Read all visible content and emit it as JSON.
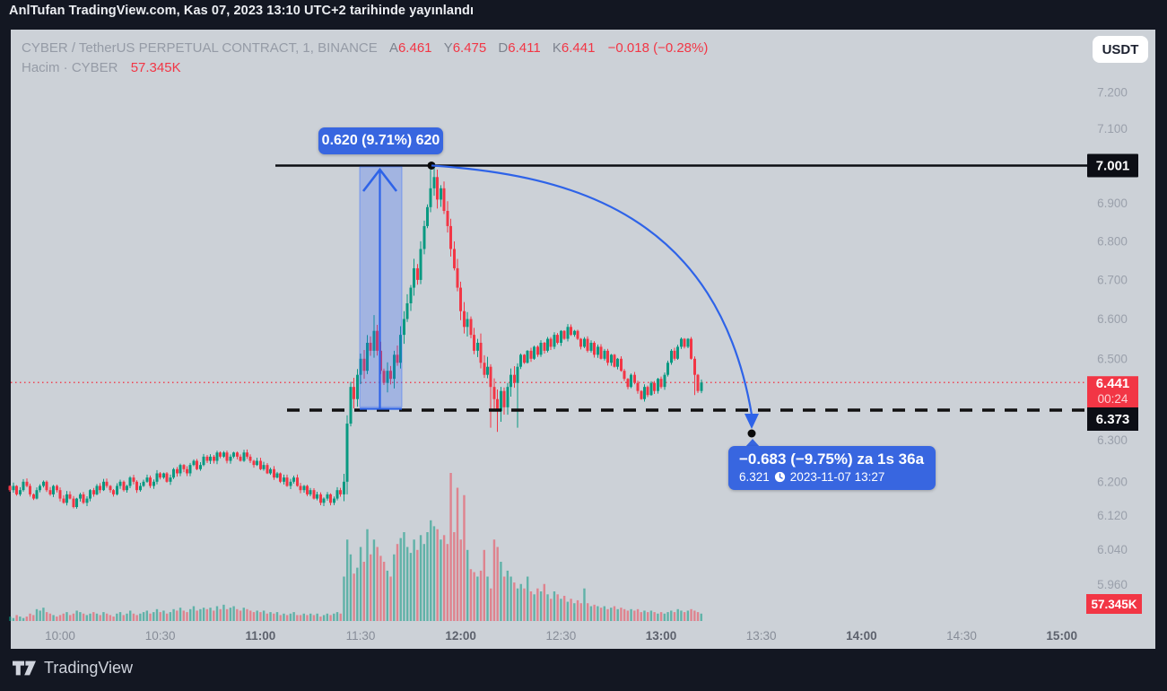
{
  "banner": {
    "text": "AnlTufan TradingView.com, Kas 07, 2023 13:10 UTC+2 tarihinde yayınlandı"
  },
  "header": {
    "symbol": "CYBER / TetherUS PERPETUAL CONTRACT, 1, BINANCE",
    "ohlc": [
      {
        "key": "A",
        "value": "6.461"
      },
      {
        "key": "Y",
        "value": "6.475"
      },
      {
        "key": "D",
        "value": "6.411"
      },
      {
        "key": "K",
        "value": "6.441"
      }
    ],
    "change": "−0.018 (−0.28%)",
    "volume_label": "Hacim · CYBER",
    "volume_value": "57.345K",
    "currency_button": "USDT"
  },
  "footer": {
    "brand": "TradingView"
  },
  "annotations": {
    "measure_up_label": "0.620 (9.71%) 620",
    "drop_label_line1": "−0.683 (−9.75%) za 1s 36a",
    "drop_label_price": "6.321",
    "drop_label_datetime": "2023-11-07  13:27",
    "high_price_label": "7.001",
    "last_price_label": "6.441",
    "countdown": "00:24",
    "dashed_price_label": "6.373",
    "volume_axis_label": "57.345K"
  },
  "colors": {
    "frame": "#131722",
    "panel_bg": "#ccd1d7",
    "up": "#089981",
    "down": "#f23645",
    "up_volume": "rgba(8,153,129,0.55)",
    "down_volume": "rgba(242,54,69,0.5)",
    "accent_blue": "#2e63e8",
    "band_fill": "rgba(41,98,255,0.26)",
    "axis_text": "#9aa0ab",
    "axis_text_bold": "#5d626d",
    "black_line": "#0b0d12",
    "red_label_bg": "#f23645",
    "black_label_bg": "#0c0e15"
  },
  "chart_data": {
    "type": "candlestick+volume",
    "interval_minutes": 1,
    "start_time": "09:45",
    "price_scale": "log",
    "y_axis_ticks": [
      {
        "label": "7.200",
        "value": 7.2
      },
      {
        "label": "7.100",
        "value": 7.1
      },
      {
        "label": "6.900",
        "value": 6.9
      },
      {
        "label": "6.800",
        "value": 6.8
      },
      {
        "label": "6.700",
        "value": 6.7
      },
      {
        "label": "6.600",
        "value": 6.6
      },
      {
        "label": "6.500",
        "value": 6.5
      },
      {
        "label": "6.300",
        "value": 6.3
      },
      {
        "label": "6.200",
        "value": 6.2
      },
      {
        "label": "6.120",
        "value": 6.12
      },
      {
        "label": "6.040",
        "value": 6.04
      },
      {
        "label": "5.960",
        "value": 5.96
      }
    ],
    "x_axis_ticks": [
      {
        "label": "10:00",
        "bold": false
      },
      {
        "label": "10:30",
        "bold": false
      },
      {
        "label": "11:00",
        "bold": true
      },
      {
        "label": "11:30",
        "bold": false
      },
      {
        "label": "12:00",
        "bold": true
      },
      {
        "label": "12:30",
        "bold": false
      },
      {
        "label": "13:00",
        "bold": true
      },
      {
        "label": "13:30",
        "bold": false
      },
      {
        "label": "14:00",
        "bold": true
      },
      {
        "label": "14:30",
        "bold": false
      },
      {
        "label": "15:00",
        "bold": true
      }
    ],
    "high_line_price": 7.001,
    "dashed_line_price": 6.373,
    "last_price": 6.441,
    "last_close_red": true,
    "measure_up": {
      "from_price": 6.381,
      "to_price": 7.001,
      "change": 0.62,
      "pct": 9.71,
      "ticks": 620
    },
    "measure_down": {
      "from_price": 7.004,
      "to_price": 6.321,
      "change": -0.683,
      "pct": -9.75,
      "duration": "1s 36a",
      "target_time": "2023-11-07 13:27"
    },
    "closes": [
      6.18,
      6.19,
      6.17,
      6.18,
      6.2,
      6.19,
      6.17,
      6.16,
      6.18,
      6.19,
      6.2,
      6.18,
      6.17,
      6.19,
      6.18,
      6.16,
      6.15,
      6.17,
      6.16,
      6.14,
      6.16,
      6.17,
      6.15,
      6.16,
      6.18,
      6.17,
      6.19,
      6.18,
      6.2,
      6.19,
      6.18,
      6.17,
      6.19,
      6.2,
      6.18,
      6.19,
      6.21,
      6.2,
      6.18,
      6.19,
      6.2,
      6.21,
      6.19,
      6.2,
      6.22,
      6.21,
      6.22,
      6.2,
      6.21,
      6.23,
      6.22,
      6.24,
      6.23,
      6.22,
      6.24,
      6.25,
      6.23,
      6.24,
      6.26,
      6.25,
      6.26,
      6.25,
      6.27,
      6.26,
      6.27,
      6.25,
      6.26,
      6.27,
      6.26,
      6.25,
      6.27,
      6.26,
      6.25,
      6.24,
      6.25,
      6.23,
      6.24,
      6.22,
      6.23,
      6.21,
      6.22,
      6.2,
      6.21,
      6.19,
      6.2,
      6.21,
      6.19,
      6.18,
      6.19,
      6.17,
      6.18,
      6.16,
      6.17,
      6.15,
      6.16,
      6.17,
      6.15,
      6.16,
      6.18,
      6.17,
      6.2,
      6.34,
      6.43,
      6.4,
      6.46,
      6.5,
      6.47,
      6.54,
      6.52,
      6.57,
      6.52,
      6.47,
      6.44,
      6.47,
      6.45,
      6.51,
      6.49,
      6.56,
      6.6,
      6.64,
      6.68,
      6.73,
      6.7,
      6.78,
      6.84,
      6.89,
      6.94,
      6.97,
      6.91,
      6.94,
      6.88,
      6.84,
      6.78,
      6.73,
      6.68,
      6.62,
      6.58,
      6.6,
      6.56,
      6.52,
      6.54,
      6.49,
      6.46,
      6.48,
      6.43,
      6.4,
      6.37,
      6.42,
      6.38,
      6.43,
      6.46,
      6.44,
      6.48,
      6.51,
      6.49,
      6.52,
      6.5,
      6.53,
      6.51,
      6.54,
      6.52,
      6.55,
      6.53,
      6.56,
      6.54,
      6.57,
      6.55,
      6.58,
      6.56,
      6.57,
      6.55,
      6.53,
      6.55,
      6.52,
      6.54,
      6.51,
      6.53,
      6.5,
      6.52,
      6.49,
      6.51,
      6.48,
      6.5,
      6.47,
      6.45,
      6.43,
      6.46,
      6.44,
      6.42,
      6.4,
      6.43,
      6.41,
      6.44,
      6.42,
      6.45,
      6.43,
      6.46,
      6.49,
      6.52,
      6.5,
      6.53,
      6.55,
      6.53,
      6.55,
      6.5,
      6.46,
      6.42,
      6.441
    ],
    "high_overrides": {
      "109": 6.61,
      "126": 6.99,
      "127": 7.0,
      "128": 6.99
    },
    "low_overrides": {
      "101": 6.17,
      "144": 6.33,
      "146": 6.32,
      "152": 6.33,
      "205": 6.41
    },
    "volumes": [
      0.03,
      0.02,
      0.04,
      0.03,
      0.02,
      0.03,
      0.05,
      0.04,
      0.08,
      0.07,
      0.09,
      0.06,
      0.05,
      0.04,
      0.03,
      0.04,
      0.05,
      0.06,
      0.04,
      0.05,
      0.07,
      0.06,
      0.05,
      0.04,
      0.05,
      0.06,
      0.05,
      0.04,
      0.06,
      0.05,
      0.04,
      0.03,
      0.05,
      0.06,
      0.04,
      0.05,
      0.07,
      0.05,
      0.04,
      0.05,
      0.06,
      0.07,
      0.05,
      0.06,
      0.08,
      0.06,
      0.07,
      0.05,
      0.06,
      0.08,
      0.07,
      0.09,
      0.07,
      0.06,
      0.08,
      0.1,
      0.07,
      0.08,
      0.09,
      0.08,
      0.09,
      0.07,
      0.1,
      0.08,
      0.11,
      0.08,
      0.09,
      0.1,
      0.08,
      0.07,
      0.09,
      0.08,
      0.07,
      0.06,
      0.07,
      0.06,
      0.07,
      0.05,
      0.06,
      0.05,
      0.06,
      0.04,
      0.05,
      0.04,
      0.05,
      0.06,
      0.04,
      0.04,
      0.05,
      0.04,
      0.05,
      0.04,
      0.05,
      0.03,
      0.04,
      0.05,
      0.04,
      0.05,
      0.06,
      0.05,
      0.3,
      0.55,
      0.45,
      0.32,
      0.36,
      0.5,
      0.4,
      0.62,
      0.45,
      0.55,
      0.5,
      0.44,
      0.4,
      0.34,
      0.3,
      0.45,
      0.52,
      0.56,
      0.6,
      0.5,
      0.46,
      0.55,
      0.48,
      0.58,
      0.52,
      0.6,
      0.68,
      0.64,
      0.62,
      0.55,
      0.58,
      0.52,
      1.0,
      0.6,
      0.9,
      0.55,
      0.85,
      0.48,
      0.35,
      0.33,
      0.3,
      0.34,
      0.48,
      0.3,
      0.22,
      0.55,
      0.5,
      0.4,
      0.3,
      0.34,
      0.3,
      0.26,
      0.22,
      0.25,
      0.22,
      0.3,
      0.2,
      0.18,
      0.22,
      0.2,
      0.25,
      0.18,
      0.15,
      0.2,
      0.18,
      0.15,
      0.17,
      0.13,
      0.15,
      0.12,
      0.14,
      0.12,
      0.22,
      0.12,
      0.1,
      0.11,
      0.1,
      0.09,
      0.1,
      0.08,
      0.09,
      0.1,
      0.08,
      0.09,
      0.08,
      0.07,
      0.08,
      0.07,
      0.08,
      0.06,
      0.07,
      0.06,
      0.07,
      0.06,
      0.05,
      0.06,
      0.05,
      0.06,
      0.07,
      0.06,
      0.08,
      0.07,
      0.06,
      0.07,
      0.08,
      0.07,
      0.06,
      0.05
    ]
  }
}
